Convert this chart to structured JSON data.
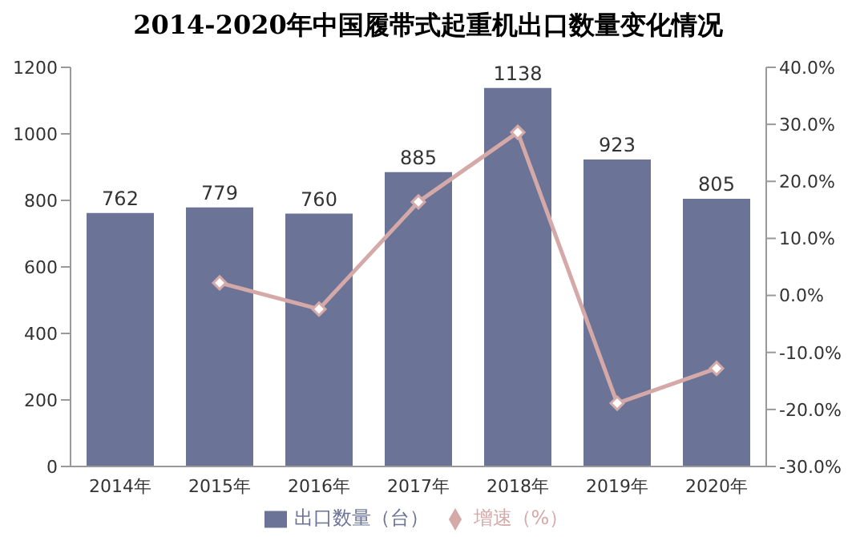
{
  "chart_data": {
    "type": "bar",
    "title": "2014-2020年中国履带式起重机出口数量变化情况",
    "categories": [
      "2014年",
      "2015年",
      "2016年",
      "2017年",
      "2018年",
      "2019年",
      "2020年"
    ],
    "series": [
      {
        "name": "出口数量（台）",
        "color": "#6b7497",
        "values": [
          762,
          779,
          760,
          885,
          1138,
          923,
          805
        ],
        "value_labels": [
          "762",
          "779",
          "760",
          "885",
          "1138",
          "923",
          "805"
        ]
      },
      {
        "name": "增速（%）",
        "type": "line",
        "axis": "y2",
        "color": "#d4a9a8",
        "marker": "diamond",
        "values": [
          null,
          2.2,
          -2.4,
          16.4,
          28.6,
          -18.9,
          -12.8
        ]
      }
    ],
    "ylim": [
      0,
      1200
    ],
    "yticks": [
      0,
      200,
      400,
      600,
      800,
      1000,
      1200
    ],
    "y2lim": [
      -30,
      40
    ],
    "y2ticks": [
      {
        "value": -30,
        "label": "-30.0%"
      },
      {
        "value": -20,
        "label": "-20.0%"
      },
      {
        "value": -10,
        "label": "-10.0%"
      },
      {
        "value": 0,
        "label": "0.0%"
      },
      {
        "value": 10,
        "label": "10.0%"
      },
      {
        "value": 20,
        "label": "20.0%"
      },
      {
        "value": 30,
        "label": "30.0%"
      },
      {
        "value": 40,
        "label": "40.0%"
      }
    ],
    "legend": "bottom"
  }
}
